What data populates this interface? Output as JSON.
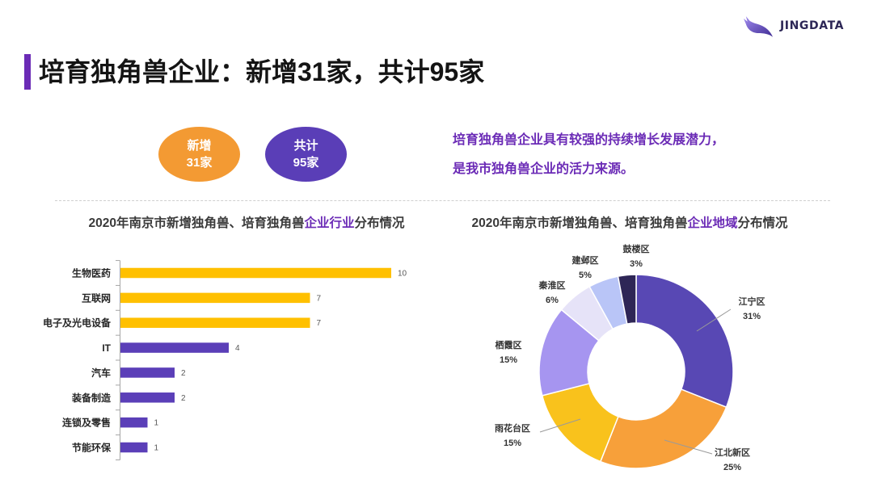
{
  "logo": {
    "text": "JINGDATA",
    "icon": "whale-logo-icon"
  },
  "title": "培育独角兽企业：新增31家，共计95家",
  "colors": {
    "accent_purple": "#6b2bb6",
    "badge_orange": "#f39a33",
    "badge_purple": "#5a3eb7",
    "highlight": "#6b2bb6",
    "logo_text": "#2c2656"
  },
  "badges": [
    {
      "line1": "新增",
      "line2": "31家"
    },
    {
      "line1": "共计",
      "line2": "95家"
    }
  ],
  "summary": {
    "line1": "培育独角兽企业具有较强的持续增长发展潜力，",
    "line2": "是我市独角兽企业的活力来源。"
  },
  "chart_data": [
    {
      "type": "bar",
      "horizontal": true,
      "title_segments": [
        {
          "text": "2020年南京市新增独角兽、培育独角兽",
          "highlight": false
        },
        {
          "text": "企业行业",
          "highlight": true
        },
        {
          "text": "分布情况",
          "highlight": false
        }
      ],
      "categories": [
        "生物医药",
        "互联网",
        "电子及光电设备",
        "IT",
        "汽车",
        "装备制造",
        "连锁及零售",
        "节能环保"
      ],
      "values": [
        10,
        7,
        7,
        4,
        2,
        2,
        1,
        1
      ],
      "bar_colors": [
        "#ffc000",
        "#ffc000",
        "#ffc000",
        "#5b3fb8",
        "#5b3fb8",
        "#5b3fb8",
        "#5b3fb8",
        "#5b3fb8"
      ],
      "data_labels": true,
      "grid": false
    },
    {
      "type": "pie",
      "donut": true,
      "title_segments": [
        {
          "text": "2020年南京市新增独角兽、培育独角兽",
          "highlight": false
        },
        {
          "text": "企业地域",
          "highlight": true
        },
        {
          "text": "分布情况",
          "highlight": false
        }
      ],
      "slices": [
        {
          "name": "江宁区",
          "value": 31,
          "label": "31%",
          "color": "#5848b4"
        },
        {
          "name": "江北新区",
          "value": 25,
          "label": "25%",
          "color": "#f7a03a"
        },
        {
          "name": "雨花台区",
          "value": 15,
          "label": "15%",
          "color": "#f9c21c"
        },
        {
          "name": "栖霞区",
          "value": 15,
          "label": "15%",
          "color": "#a695f0"
        },
        {
          "name": "秦淮区",
          "value": 6,
          "label": "6%",
          "color": "#e6e3f8"
        },
        {
          "name": "建邺区",
          "value": 5,
          "label": "5%",
          "color": "#b9c5f7"
        },
        {
          "name": "鼓楼区",
          "value": 3,
          "label": "3%",
          "color": "#2e2656"
        }
      ]
    }
  ]
}
